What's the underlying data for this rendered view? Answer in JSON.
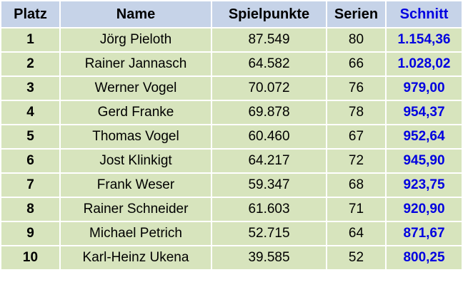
{
  "table": {
    "headers": {
      "platz": "Platz",
      "name": "Name",
      "spielpunkte": "Spielpunkte",
      "serien": "Serien",
      "schnitt": "Schnitt"
    },
    "rows": [
      {
        "platz": "1",
        "name": "Jörg Pieloth",
        "spielpunkte": "87.549",
        "serien": "80",
        "schnitt": "1.154,36"
      },
      {
        "platz": "2",
        "name": "Rainer Jannasch",
        "spielpunkte": "64.582",
        "serien": "66",
        "schnitt": "1.028,02"
      },
      {
        "platz": "3",
        "name": "Werner Vogel",
        "spielpunkte": "70.072",
        "serien": "76",
        "schnitt": "979,00"
      },
      {
        "platz": "4",
        "name": "Gerd Franke",
        "spielpunkte": "69.878",
        "serien": "78",
        "schnitt": "954,37"
      },
      {
        "platz": "5",
        "name": "Thomas Vogel",
        "spielpunkte": "60.460",
        "serien": "67",
        "schnitt": "952,64"
      },
      {
        "platz": "6",
        "name": "Jost Klinkigt",
        "spielpunkte": "64.217",
        "serien": "72",
        "schnitt": "945,90"
      },
      {
        "platz": "7",
        "name": "Frank Weser",
        "spielpunkte": "59.347",
        "serien": "68",
        "schnitt": "923,75"
      },
      {
        "platz": "8",
        "name": "Rainer Schneider",
        "spielpunkte": "61.603",
        "serien": "71",
        "schnitt": "920,90"
      },
      {
        "platz": "9",
        "name": "Michael Petrich",
        "spielpunkte": "52.715",
        "serien": "64",
        "schnitt": "871,67"
      },
      {
        "platz": "10",
        "name": "Karl-Heinz Ukena",
        "spielpunkte": "39.585",
        "serien": "52",
        "schnitt": "800,25"
      }
    ]
  },
  "colors": {
    "header_background": "#c6d3e8",
    "row_background": "#d7e4bd",
    "schnitt_accent": "#0000e0",
    "grid_lines": "#ffffff"
  }
}
